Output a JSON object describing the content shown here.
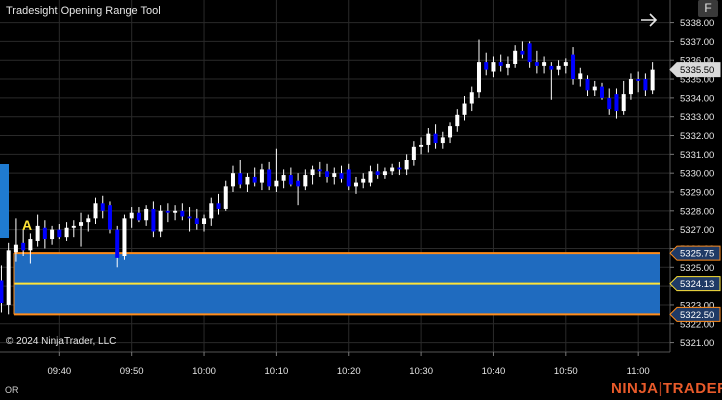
{
  "window": {
    "title": "Tradesight Opening Range Tool",
    "f_button_label": "F"
  },
  "copyright": "© 2024 NinjaTrader, LLC",
  "bottom_left_label": "OR",
  "brand": {
    "left": "NINJA",
    "sep": "|",
    "right": "TRADER"
  },
  "marker_label": "A",
  "colors": {
    "background": "#000000",
    "grid": "#2a2a2a",
    "up_candle": "#ffffff",
    "down_candle": "#0000ff",
    "range_fill": "#1f6bbf",
    "range_border": "#ff8c1a",
    "range_mid": "#ffe438",
    "brand": "#e85a2a"
  },
  "chart_data": {
    "type": "candlestick",
    "title": "Tradesight Opening Range Tool",
    "ylim": [
      5320.5,
      5339.2
    ],
    "y_ticks": [
      "5321.00",
      "5322.00",
      "5323.00",
      "5324.00",
      "5325.00",
      "5326.00",
      "5327.00",
      "5328.00",
      "5329.00",
      "5330.00",
      "5331.00",
      "5332.00",
      "5333.00",
      "5334.00",
      "5335.00",
      "5336.00",
      "5337.00",
      "5338.00"
    ],
    "x_ticks": [
      "09:40",
      "09:50",
      "10:00",
      "10:10",
      "10:20",
      "10:30",
      "10:40",
      "10:50",
      "11:00"
    ],
    "x_tick_minutes": [
      580,
      590,
      600,
      610,
      620,
      630,
      640,
      650,
      660
    ],
    "xlim_minutes": [
      571.8,
      664.4
    ],
    "opening_range": {
      "high": 5325.75,
      "mid": 5324.13,
      "low": 5322.5
    },
    "price_labels": [
      "5325.75",
      "5324.13",
      "5322.50",
      "5335.50"
    ],
    "last_price": 5335.5,
    "candles": [
      {
        "t": 572,
        "o": 5324.3,
        "h": 5325.1,
        "l": 5322.6,
        "c": 5323.1
      },
      {
        "t": 573,
        "o": 5323.0,
        "h": 5326.3,
        "l": 5322.5,
        "c": 5325.9
      },
      {
        "t": 574,
        "o": 5325.8,
        "h": 5327.6,
        "l": 5325.3,
        "c": 5326.2
      },
      {
        "t": 575,
        "o": 5326.3,
        "h": 5327.0,
        "l": 5325.6,
        "c": 5325.9
      },
      {
        "t": 576,
        "o": 5325.9,
        "h": 5326.8,
        "l": 5325.2,
        "c": 5326.5
      },
      {
        "t": 577,
        "o": 5326.4,
        "h": 5327.8,
        "l": 5326.1,
        "c": 5327.2
      },
      {
        "t": 578,
        "o": 5327.1,
        "h": 5327.5,
        "l": 5326.0,
        "c": 5326.5
      },
      {
        "t": 579,
        "o": 5326.5,
        "h": 5327.2,
        "l": 5326.2,
        "c": 5327.0
      },
      {
        "t": 580,
        "o": 5327.0,
        "h": 5327.3,
        "l": 5326.5,
        "c": 5326.6
      },
      {
        "t": 581,
        "o": 5326.6,
        "h": 5327.4,
        "l": 5326.4,
        "c": 5327.1
      },
      {
        "t": 582,
        "o": 5327.1,
        "h": 5327.5,
        "l": 5326.6,
        "c": 5327.2
      },
      {
        "t": 583,
        "o": 5327.2,
        "h": 5327.9,
        "l": 5326.1,
        "c": 5327.4
      },
      {
        "t": 584,
        "o": 5327.4,
        "h": 5327.8,
        "l": 5326.9,
        "c": 5327.6
      },
      {
        "t": 585,
        "o": 5327.6,
        "h": 5328.7,
        "l": 5327.3,
        "c": 5328.4
      },
      {
        "t": 586,
        "o": 5328.4,
        "h": 5328.8,
        "l": 5327.6,
        "c": 5328.0
      },
      {
        "t": 587,
        "o": 5328.3,
        "h": 5328.5,
        "l": 5326.8,
        "c": 5327.0
      },
      {
        "t": 588,
        "o": 5327.0,
        "h": 5327.2,
        "l": 5325.0,
        "c": 5325.5
      },
      {
        "t": 589,
        "o": 5325.6,
        "h": 5327.8,
        "l": 5325.4,
        "c": 5327.6
      },
      {
        "t": 590,
        "o": 5327.6,
        "h": 5328.2,
        "l": 5327.1,
        "c": 5327.9
      },
      {
        "t": 591,
        "o": 5327.9,
        "h": 5328.2,
        "l": 5327.4,
        "c": 5327.5
      },
      {
        "t": 592,
        "o": 5327.5,
        "h": 5328.3,
        "l": 5327.2,
        "c": 5328.1
      },
      {
        "t": 593,
        "o": 5328.1,
        "h": 5328.5,
        "l": 5326.6,
        "c": 5326.9
      },
      {
        "t": 594,
        "o": 5326.9,
        "h": 5328.3,
        "l": 5326.6,
        "c": 5328.0
      },
      {
        "t": 595,
        "o": 5328.0,
        "h": 5328.4,
        "l": 5327.4,
        "c": 5327.9
      },
      {
        "t": 596,
        "o": 5327.9,
        "h": 5328.3,
        "l": 5327.5,
        "c": 5328.0
      },
      {
        "t": 597,
        "o": 5328.0,
        "h": 5328.4,
        "l": 5327.5,
        "c": 5327.7
      },
      {
        "t": 598,
        "o": 5327.7,
        "h": 5328.2,
        "l": 5326.9,
        "c": 5327.6
      },
      {
        "t": 599,
        "o": 5327.6,
        "h": 5328.1,
        "l": 5327.0,
        "c": 5327.3
      },
      {
        "t": 600,
        "o": 5327.3,
        "h": 5327.8,
        "l": 5326.9,
        "c": 5327.6
      },
      {
        "t": 601,
        "o": 5327.6,
        "h": 5328.7,
        "l": 5327.2,
        "c": 5328.4
      },
      {
        "t": 602,
        "o": 5328.4,
        "h": 5328.9,
        "l": 5327.8,
        "c": 5328.1
      },
      {
        "t": 603,
        "o": 5328.1,
        "h": 5329.6,
        "l": 5328.0,
        "c": 5329.3
      },
      {
        "t": 604,
        "o": 5329.3,
        "h": 5330.4,
        "l": 5329.0,
        "c": 5330.0
      },
      {
        "t": 605,
        "o": 5330.0,
        "h": 5330.7,
        "l": 5329.2,
        "c": 5329.4
      },
      {
        "t": 606,
        "o": 5329.4,
        "h": 5330.0,
        "l": 5329.0,
        "c": 5329.8
      },
      {
        "t": 607,
        "o": 5329.8,
        "h": 5330.3,
        "l": 5329.3,
        "c": 5329.5
      },
      {
        "t": 608,
        "o": 5329.5,
        "h": 5330.5,
        "l": 5329.1,
        "c": 5330.2
      },
      {
        "t": 609,
        "o": 5330.2,
        "h": 5330.6,
        "l": 5329.1,
        "c": 5329.3
      },
      {
        "t": 610,
        "o": 5329.3,
        "h": 5331.3,
        "l": 5329.0,
        "c": 5329.6
      },
      {
        "t": 611,
        "o": 5329.6,
        "h": 5330.2,
        "l": 5329.2,
        "c": 5329.9
      },
      {
        "t": 612,
        "o": 5329.9,
        "h": 5330.3,
        "l": 5329.3,
        "c": 5329.4
      },
      {
        "t": 613,
        "o": 5329.6,
        "h": 5330.0,
        "l": 5328.3,
        "c": 5329.3
      },
      {
        "t": 614,
        "o": 5329.3,
        "h": 5330.2,
        "l": 5329.1,
        "c": 5329.9
      },
      {
        "t": 615,
        "o": 5329.9,
        "h": 5330.4,
        "l": 5329.4,
        "c": 5330.2
      },
      {
        "t": 616,
        "o": 5330.2,
        "h": 5330.6,
        "l": 5329.8,
        "c": 5330.1
      },
      {
        "t": 617,
        "o": 5330.1,
        "h": 5330.5,
        "l": 5329.5,
        "c": 5329.8
      },
      {
        "t": 618,
        "o": 5329.8,
        "h": 5330.3,
        "l": 5329.4,
        "c": 5330.0
      },
      {
        "t": 619,
        "o": 5330.0,
        "h": 5330.4,
        "l": 5329.5,
        "c": 5329.7
      },
      {
        "t": 620,
        "o": 5330.2,
        "h": 5330.5,
        "l": 5329.1,
        "c": 5329.3
      },
      {
        "t": 621,
        "o": 5329.3,
        "h": 5329.8,
        "l": 5328.9,
        "c": 5329.5
      },
      {
        "t": 622,
        "o": 5329.5,
        "h": 5330.0,
        "l": 5329.2,
        "c": 5329.7
      },
      {
        "t": 623,
        "o": 5329.5,
        "h": 5330.4,
        "l": 5329.3,
        "c": 5330.1
      },
      {
        "t": 624,
        "o": 5330.1,
        "h": 5330.5,
        "l": 5329.7,
        "c": 5329.9
      },
      {
        "t": 625,
        "o": 5329.9,
        "h": 5330.3,
        "l": 5329.7,
        "c": 5330.1
      },
      {
        "t": 626,
        "o": 5330.1,
        "h": 5330.5,
        "l": 5329.9,
        "c": 5330.3
      },
      {
        "t": 627,
        "o": 5330.3,
        "h": 5330.6,
        "l": 5329.9,
        "c": 5330.2
      },
      {
        "t": 628,
        "o": 5330.2,
        "h": 5331.0,
        "l": 5329.9,
        "c": 5330.7
      },
      {
        "t": 629,
        "o": 5330.7,
        "h": 5331.7,
        "l": 5330.4,
        "c": 5331.4
      },
      {
        "t": 630,
        "o": 5331.4,
        "h": 5331.9,
        "l": 5331.0,
        "c": 5331.5
      },
      {
        "t": 631,
        "o": 5331.5,
        "h": 5332.4,
        "l": 5331.1,
        "c": 5332.1
      },
      {
        "t": 632,
        "o": 5332.1,
        "h": 5332.6,
        "l": 5331.3,
        "c": 5331.6
      },
      {
        "t": 633,
        "o": 5331.6,
        "h": 5332.2,
        "l": 5331.3,
        "c": 5331.9
      },
      {
        "t": 634,
        "o": 5331.9,
        "h": 5332.7,
        "l": 5331.6,
        "c": 5332.5
      },
      {
        "t": 635,
        "o": 5332.5,
        "h": 5333.4,
        "l": 5332.2,
        "c": 5333.1
      },
      {
        "t": 636,
        "o": 5333.1,
        "h": 5334.1,
        "l": 5332.8,
        "c": 5333.7
      },
      {
        "t": 637,
        "o": 5333.7,
        "h": 5334.6,
        "l": 5333.3,
        "c": 5334.3
      },
      {
        "t": 638,
        "o": 5334.3,
        "h": 5337.1,
        "l": 5334.0,
        "c": 5335.9
      },
      {
        "t": 639,
        "o": 5335.9,
        "h": 5336.4,
        "l": 5335.2,
        "c": 5335.5
      },
      {
        "t": 640,
        "o": 5335.4,
        "h": 5336.2,
        "l": 5335.1,
        "c": 5335.9
      },
      {
        "t": 641,
        "o": 5335.9,
        "h": 5336.3,
        "l": 5335.4,
        "c": 5335.7
      },
      {
        "t": 642,
        "o": 5335.6,
        "h": 5336.2,
        "l": 5335.2,
        "c": 5335.8
      },
      {
        "t": 643,
        "o": 5335.8,
        "h": 5336.8,
        "l": 5335.6,
        "c": 5336.5
      },
      {
        "t": 644,
        "o": 5336.5,
        "h": 5337.0,
        "l": 5336.1,
        "c": 5336.3
      },
      {
        "t": 645,
        "o": 5336.9,
        "h": 5337.0,
        "l": 5335.6,
        "c": 5335.9
      },
      {
        "t": 646,
        "o": 5335.9,
        "h": 5336.5,
        "l": 5335.3,
        "c": 5335.7
      },
      {
        "t": 647,
        "o": 5335.7,
        "h": 5336.2,
        "l": 5335.3,
        "c": 5335.9
      },
      {
        "t": 648,
        "o": 5335.7,
        "h": 5335.9,
        "l": 5333.9,
        "c": 5335.5
      },
      {
        "t": 649,
        "o": 5335.5,
        "h": 5336.0,
        "l": 5335.2,
        "c": 5335.7
      },
      {
        "t": 650,
        "o": 5335.7,
        "h": 5336.1,
        "l": 5335.3,
        "c": 5335.9
      },
      {
        "t": 651,
        "o": 5336.3,
        "h": 5336.7,
        "l": 5334.7,
        "c": 5335.0
      },
      {
        "t": 652,
        "o": 5335.0,
        "h": 5335.6,
        "l": 5334.6,
        "c": 5335.3
      },
      {
        "t": 653,
        "o": 5335.0,
        "h": 5335.2,
        "l": 5334.1,
        "c": 5334.4
      },
      {
        "t": 654,
        "o": 5334.4,
        "h": 5334.9,
        "l": 5334.1,
        "c": 5334.6
      },
      {
        "t": 655,
        "o": 5334.6,
        "h": 5334.8,
        "l": 5333.9,
        "c": 5334.0
      },
      {
        "t": 656,
        "o": 5334.0,
        "h": 5334.5,
        "l": 5333.1,
        "c": 5333.4
      },
      {
        "t": 657,
        "o": 5334.2,
        "h": 5334.5,
        "l": 5332.9,
        "c": 5333.3
      },
      {
        "t": 658,
        "o": 5333.3,
        "h": 5334.9,
        "l": 5333.1,
        "c": 5334.2
      },
      {
        "t": 659,
        "o": 5334.2,
        "h": 5335.3,
        "l": 5333.9,
        "c": 5335.0
      },
      {
        "t": 660,
        "o": 5335.0,
        "h": 5335.4,
        "l": 5334.3,
        "c": 5334.9
      },
      {
        "t": 661,
        "o": 5335.0,
        "h": 5335.3,
        "l": 5334.1,
        "c": 5334.4
      },
      {
        "t": 662,
        "o": 5334.4,
        "h": 5335.9,
        "l": 5334.2,
        "c": 5335.5
      }
    ]
  }
}
